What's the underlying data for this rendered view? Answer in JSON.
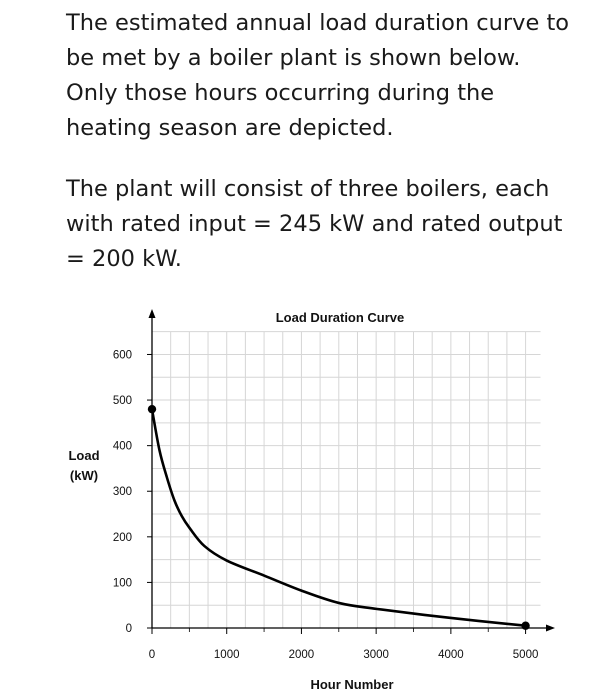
{
  "problem": {
    "paragraph1": [
      "The estimated annual load duration curve to",
      "be met by a boiler plant is shown below.",
      "Only those hours occurring during the",
      "heating season are depicted."
    ],
    "paragraph2": [
      "The plant will consist of three boilers, each",
      "with rated input = 245 kW and rated output",
      "= 200 kW."
    ]
  },
  "chart_data": {
    "type": "line",
    "title": "Load Duration Curve",
    "xlabel": "Hour Number",
    "ylabel_lines": [
      "Load",
      "(kW)"
    ],
    "xlim": [
      0,
      5300
    ],
    "ylim": [
      0,
      680
    ],
    "x_ticks": [
      0,
      1000,
      2000,
      3000,
      4000,
      5000
    ],
    "y_ticks": [
      0,
      100,
      200,
      300,
      400,
      500,
      600
    ],
    "grid": true,
    "curve_color": "#000000",
    "series": [
      {
        "x": [
          0,
          100,
          200,
          300,
          400,
          500,
          700,
          1000,
          1500,
          2000,
          2500,
          3000,
          4000,
          5000
        ],
        "values": [
          480,
          390,
          330,
          280,
          245,
          220,
          180,
          148,
          115,
          82,
          55,
          42,
          22,
          5
        ]
      }
    ],
    "endpoints": [
      {
        "x": 0,
        "y": 480
      },
      {
        "x": 5000,
        "y": 5
      }
    ]
  }
}
